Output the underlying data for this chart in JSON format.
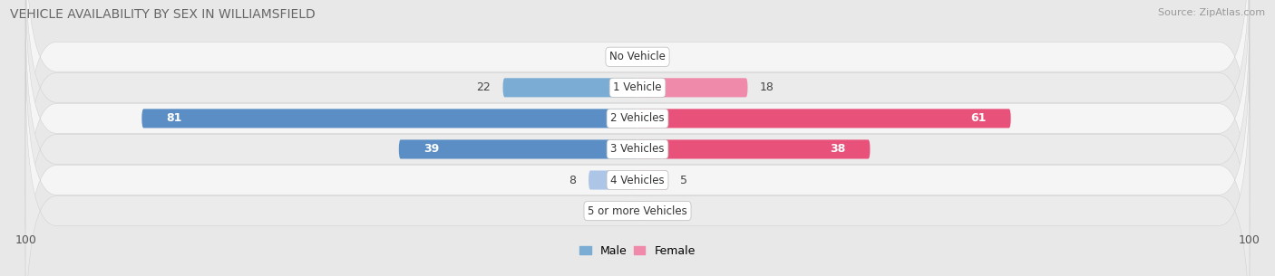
{
  "title": "VEHICLE AVAILABILITY BY SEX IN WILLIAMSFIELD",
  "source": "Source: ZipAtlas.com",
  "categories": [
    "No Vehicle",
    "1 Vehicle",
    "2 Vehicles",
    "3 Vehicles",
    "4 Vehicles",
    "5 or more Vehicles"
  ],
  "male_values": [
    0,
    22,
    81,
    39,
    8,
    2
  ],
  "female_values": [
    0,
    18,
    61,
    38,
    5,
    2
  ],
  "male_color_light": "#adc6e8",
  "male_color_dark": "#5b8ec4",
  "female_color_light": "#f7b8cb",
  "female_color_dark": "#e8527a",
  "male_label": "Male",
  "female_label": "Female",
  "xlim": [
    -100,
    100
  ],
  "bar_height": 0.62,
  "bg_color": "#e8e8e8",
  "row_bg_odd": "#f5f5f5",
  "row_bg_even": "#ebebeb",
  "title_fontsize": 10,
  "source_fontsize": 8,
  "label_fontsize": 9,
  "value_fontsize": 9,
  "category_fontsize": 8.5,
  "value_threshold_large": 30,
  "value_threshold_medium": 10
}
